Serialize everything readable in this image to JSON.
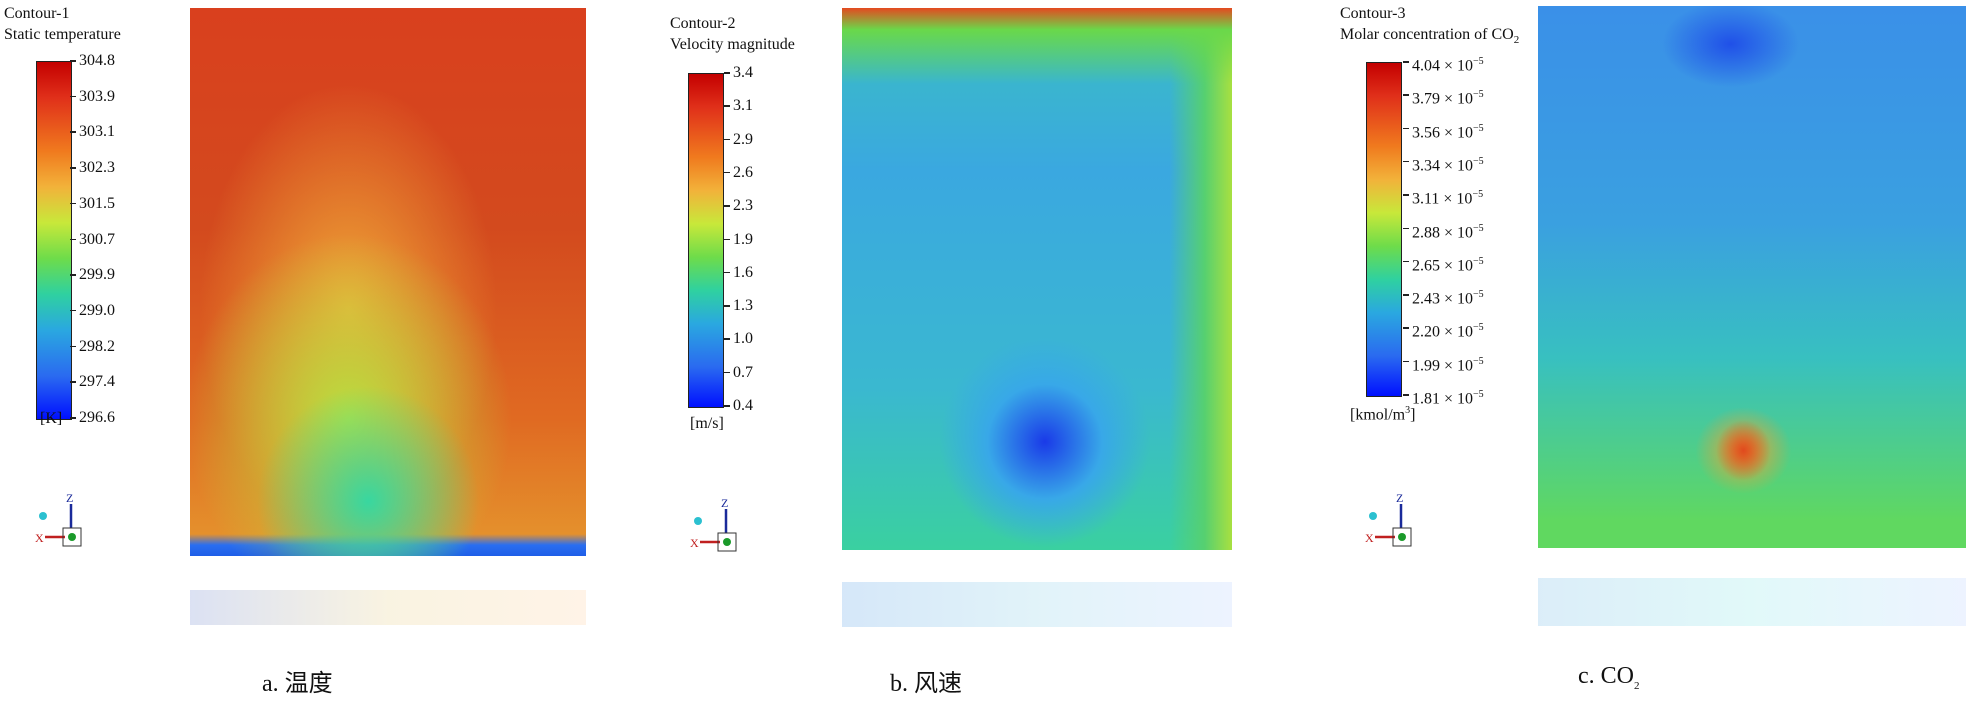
{
  "panels": [
    {
      "title": "Contour-1",
      "quantity": "Static temperature",
      "unit": "[K]",
      "ticks": [
        "304.8",
        "303.9",
        "303.1",
        "302.3",
        "301.5",
        "300.7",
        "299.9",
        "299.0",
        "298.2",
        "297.4",
        "296.6"
      ],
      "caption": "a. 温度"
    },
    {
      "title": "Contour-2",
      "quantity": "Velocity magnitude",
      "unit": "[m/s]",
      "ticks": [
        "3.4",
        "3.1",
        "2.9",
        "2.6",
        "2.3",
        "1.9",
        "1.6",
        "1.3",
        "1.0",
        "0.7",
        "0.4"
      ],
      "caption": "b. 风速"
    },
    {
      "title": "Contour-3",
      "quantity": "Molar concentration of CO",
      "quantity_sub": "2",
      "unit": "[kmol/m",
      "unit_sup": "3",
      "unit_end": "]",
      "ticks": [
        "4.04 × 10",
        "3.79 × 10",
        "3.56 × 10",
        "3.34 × 10",
        "3.11 × 10",
        "2.88 × 10",
        "2.65 × 10",
        "2.43 × 10",
        "2.20 × 10",
        "1.99 × 10",
        "1.81 × 10"
      ],
      "tick_exponent": "−5",
      "caption": "c. CO",
      "caption_sub": "2"
    }
  ],
  "axis_labels": {
    "x": "X",
    "z": "Z"
  },
  "colors": {
    "max": "#c40000",
    "min": "#0010ff"
  }
}
